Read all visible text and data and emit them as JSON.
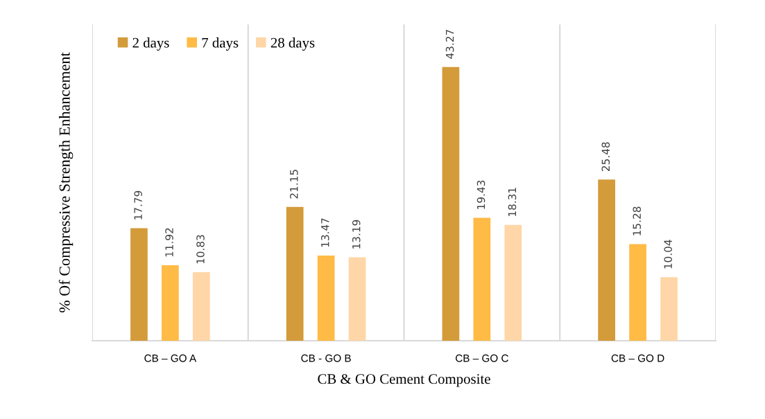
{
  "chart_data": {
    "type": "bar",
    "xlabel": "CB & GO Cement Composite",
    "ylabel": "% Of Compressive Strength Enhancement",
    "categories": [
      "CB – GO A",
      "CB - GO B",
      "CB – GO C",
      "CB – GO D"
    ],
    "series": [
      {
        "name": "2 days",
        "color": "#d39b3a",
        "values": [
          17.79,
          21.15,
          43.27,
          25.48
        ]
      },
      {
        "name": "7 days",
        "color": "#ffbb45",
        "values": [
          11.92,
          13.47,
          19.43,
          15.28
        ]
      },
      {
        "name": "28 days",
        "color": "#ffd6a7",
        "values": [
          10.83,
          13.19,
          18.31,
          10.04
        ]
      }
    ],
    "ylim": [
      0,
      50
    ],
    "data_labels": true,
    "grid": "x",
    "legend": "top left",
    "tick_labels": "x"
  }
}
